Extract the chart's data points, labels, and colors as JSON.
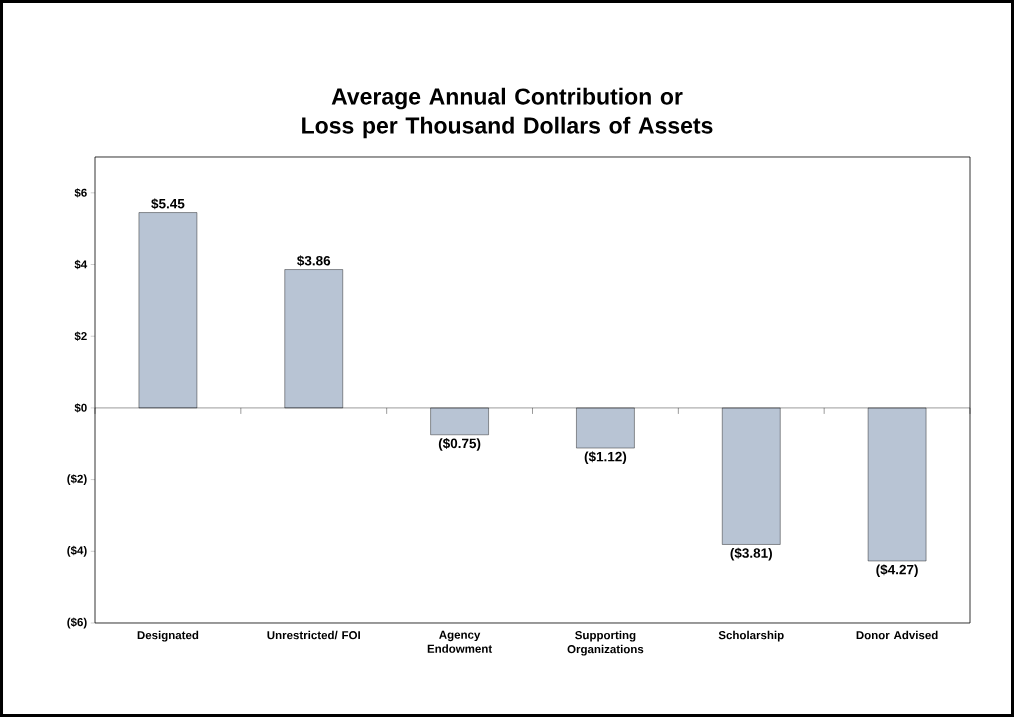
{
  "chart_data": {
    "type": "bar",
    "title": "Average Annual Contribution or Loss per Thousand Dollars of Assets",
    "categories": [
      "Designated",
      "Unrestricted/ FOI",
      "Agency Endowment",
      "Supporting Organizations",
      "Scholarship",
      "Donor Advised"
    ],
    "values": [
      5.45,
      3.86,
      -0.75,
      -1.12,
      -3.81,
      -4.27
    ],
    "value_labels": [
      "$5.45",
      "$3.86",
      "($0.75)",
      "($1.12)",
      "($3.81)",
      "($4.27)"
    ],
    "color": "#b8c4d4",
    "ylim": [
      -6,
      7
    ],
    "yticks": [
      {
        "value": -6,
        "label": "($6)"
      },
      {
        "value": -4,
        "label": "($4)"
      },
      {
        "value": -2,
        "label": "($2)"
      },
      {
        "value": 0,
        "label": "$0"
      },
      {
        "value": 2,
        "label": "$2"
      },
      {
        "value": 4,
        "label": "$4"
      },
      {
        "value": 6,
        "label": "$6"
      }
    ],
    "orientation": "vertical"
  }
}
